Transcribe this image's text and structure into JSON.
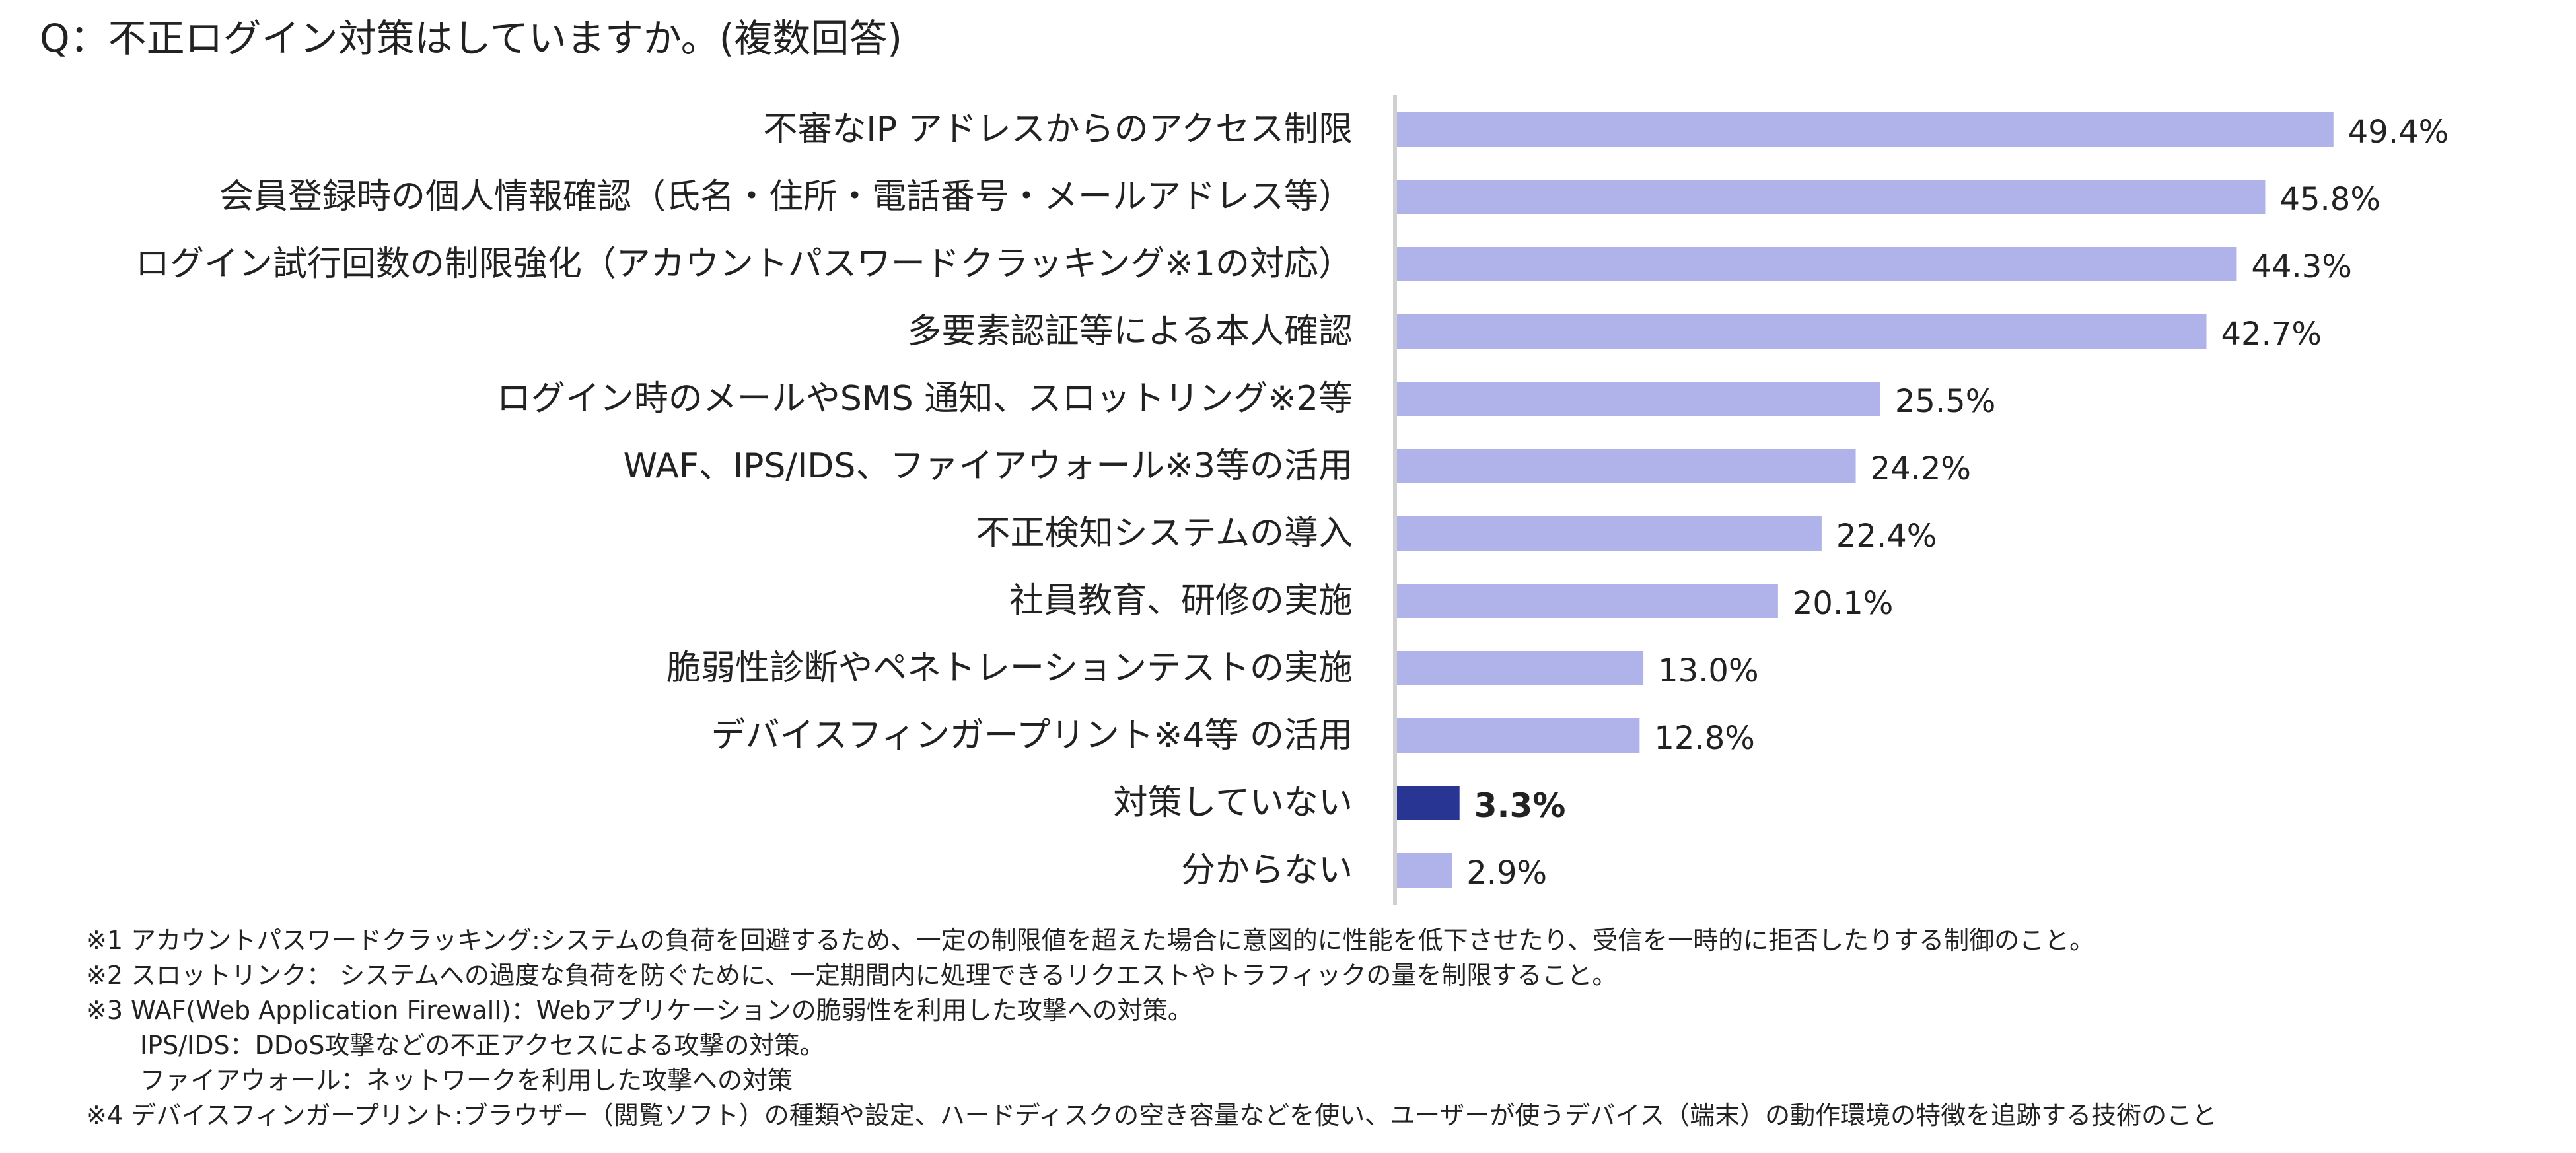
{
  "title": "Q：不正ログイン対策はしていますか。(複数回答)",
  "chart_data": {
    "type": "bar",
    "orientation": "horizontal",
    "title": "Q：不正ログイン対策はしていますか。(複数回答)",
    "xlabel": "",
    "ylabel": "",
    "value_suffix": "%",
    "categories": [
      "不審なIP アドレスからのアクセス制限",
      "会員登録時の個人情報確認（氏名・住所・電話番号・メールアドレス等）",
      "ログイン試行回数の制限強化（アカウントパスワードクラッキング※1の対応）",
      "多要素認証等による本人確認",
      "ログイン時のメールやSMS 通知、スロットリング※2等",
      "WAF、IPS/IDS、ファイアウォール※3等の活用",
      "不正検知システムの導入",
      "社員教育、研修の実施",
      "脆弱性診断やペネトレーションテストの実施",
      "デバイスフィンガープリント※4等 の活用",
      "対策していない",
      "分からない"
    ],
    "values": [
      49.4,
      45.8,
      44.3,
      42.7,
      25.5,
      24.2,
      22.4,
      20.1,
      13.0,
      12.8,
      3.3,
      2.9
    ],
    "labels": [
      "49.4%",
      "45.8%",
      "44.3%",
      "42.7%",
      "25.5%",
      "24.2%",
      "22.4%",
      "20.1%",
      "13.0%",
      "12.8%",
      "3.3%",
      "2.9%"
    ],
    "highlight_index": 10,
    "colors": {
      "bar": "#b0b3ea",
      "highlight": "#283593",
      "axis": "#d0d0d0",
      "text": "#222222"
    },
    "grid": false,
    "legend": "none"
  },
  "footnotes": [
    "※1 アカウントパスワードクラッキング:システムの負荷を回避するため、一定の制限値を超えた場合に意図的に性能を低下させたり、受信を一時的に拒否したりする制御のこと。",
    "※2 スロットリンク： システムへの過度な負荷を防ぐために、一定期間内に処理できるリクエストやトラフィックの量を制限すること。",
    "※3 WAF(Web Application Firewall)：Webアプリケーションの脆弱性を利用した攻撃への対策。",
    "IPS/IDS：DDoS攻撃などの不正アクセスによる攻撃の対策。",
    "ファイアウォール：ネットワークを利用した攻撃への対策",
    "※4 デバイスフィンガープリント:ブラウザー（閲覧ソフト）の種類や設定、ハードディスクの空き容量などを使い、ユーザーが使うデバイス（端末）の動作環境の特徴を追跡する技術のこと"
  ]
}
